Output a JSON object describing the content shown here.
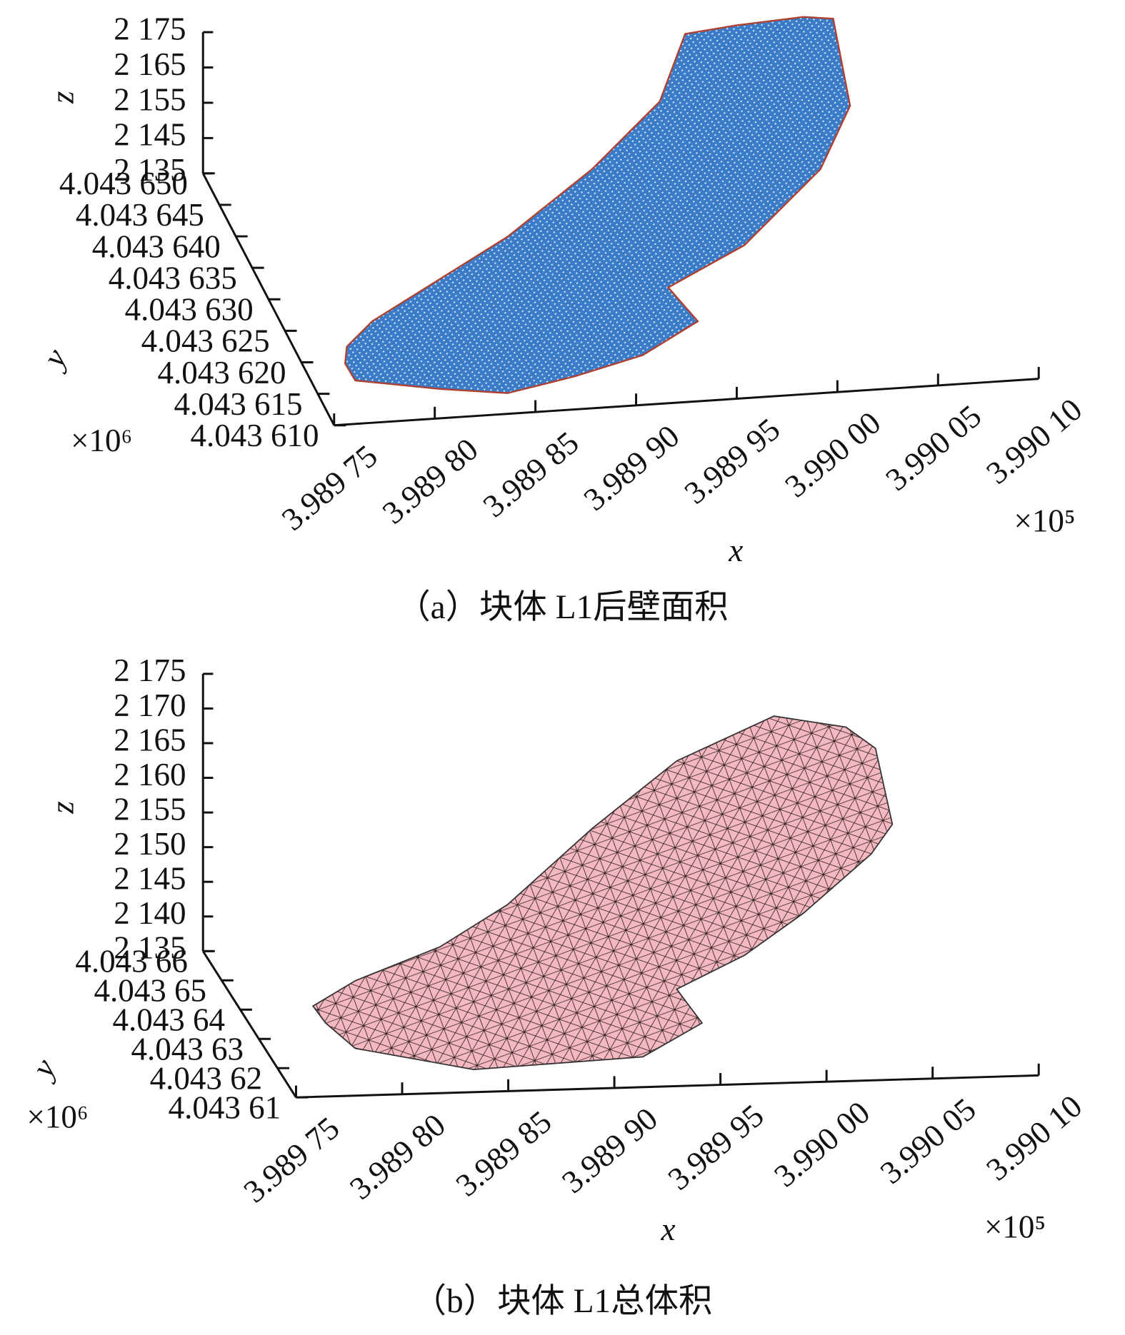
{
  "chart_data": [
    {
      "type": "scatter3d",
      "caption": "（a）块体 L1后壁面积",
      "color": "#3a7cc8",
      "xlabel": "x",
      "ylabel": "y",
      "zlabel": "z",
      "x_multiplier": "×10⁵",
      "y_multiplier": "×10⁶",
      "xlim": [
        3.98975,
        3.9901
      ],
      "ylim": [
        4.04361,
        4.04365
      ],
      "zlim": [
        2135,
        2175
      ],
      "xticks": [
        {
          "value": 3.98975,
          "label": "3.989 75"
        },
        {
          "value": 3.9898,
          "label": "3.989 80"
        },
        {
          "value": 3.98985,
          "label": "3.989 85"
        },
        {
          "value": 3.9899,
          "label": "3.989 90"
        },
        {
          "value": 3.98995,
          "label": "3.989 95"
        },
        {
          "value": 3.99,
          "label": "3.990 00"
        },
        {
          "value": 3.99005,
          "label": "3.990 05"
        },
        {
          "value": 3.9901,
          "label": "3.990 10"
        }
      ],
      "yticks": [
        {
          "value": 4.04361,
          "label": "4.043 610"
        },
        {
          "value": 4.043615,
          "label": "4.043 615"
        },
        {
          "value": 4.04362,
          "label": "4.043 620"
        },
        {
          "value": 4.043625,
          "label": "4.043 625"
        },
        {
          "value": 4.04363,
          "label": "4.043 630"
        },
        {
          "value": 4.043635,
          "label": "4.043 635"
        },
        {
          "value": 4.04364,
          "label": "4.043 640"
        },
        {
          "value": 4.043645,
          "label": "4.043 645"
        },
        {
          "value": 4.04365,
          "label": "4.043 650"
        }
      ],
      "zticks": [
        {
          "value": 2135,
          "label": "2 135"
        },
        {
          "value": 2145,
          "label": "2 145"
        },
        {
          "value": 2155,
          "label": "2 155"
        },
        {
          "value": 2165,
          "label": "2 165"
        },
        {
          "value": 2175,
          "label": "2 175"
        }
      ]
    },
    {
      "type": "mesh3d",
      "caption": "（b）块体 L1总体积",
      "color": "#f4b8c0",
      "xlabel": "x",
      "ylabel": "y",
      "zlabel": "z",
      "x_multiplier": "×10⁵",
      "y_multiplier": "×10⁶",
      "xlim": [
        3.98975,
        3.9901
      ],
      "ylim": [
        4.04361,
        4.04366
      ],
      "zlim": [
        2135,
        2175
      ],
      "xticks": [
        {
          "value": 3.98975,
          "label": "3.989 75"
        },
        {
          "value": 3.9898,
          "label": "3.989 80"
        },
        {
          "value": 3.98985,
          "label": "3.989 85"
        },
        {
          "value": 3.9899,
          "label": "3.989 90"
        },
        {
          "value": 3.98995,
          "label": "3.989 95"
        },
        {
          "value": 3.99,
          "label": "3.990 00"
        },
        {
          "value": 3.99005,
          "label": "3.990 05"
        },
        {
          "value": 3.9901,
          "label": "3.990 10"
        }
      ],
      "yticks": [
        {
          "value": 4.04361,
          "label": "4.043 61"
        },
        {
          "value": 4.04362,
          "label": "4.043 62"
        },
        {
          "value": 4.04363,
          "label": "4.043 63"
        },
        {
          "value": 4.04364,
          "label": "4.043 64"
        },
        {
          "value": 4.04365,
          "label": "4.043 65"
        },
        {
          "value": 4.04366,
          "label": "4.043 66"
        }
      ],
      "zticks": [
        {
          "value": 2135,
          "label": "2 135"
        },
        {
          "value": 2140,
          "label": "2 140"
        },
        {
          "value": 2145,
          "label": "2 145"
        },
        {
          "value": 2150,
          "label": "2 150"
        },
        {
          "value": 2155,
          "label": "2 155"
        },
        {
          "value": 2160,
          "label": "2 160"
        },
        {
          "value": 2165,
          "label": "2 165"
        },
        {
          "value": 2170,
          "label": "2 170"
        },
        {
          "value": 2175,
          "label": "2 175"
        }
      ]
    }
  ]
}
